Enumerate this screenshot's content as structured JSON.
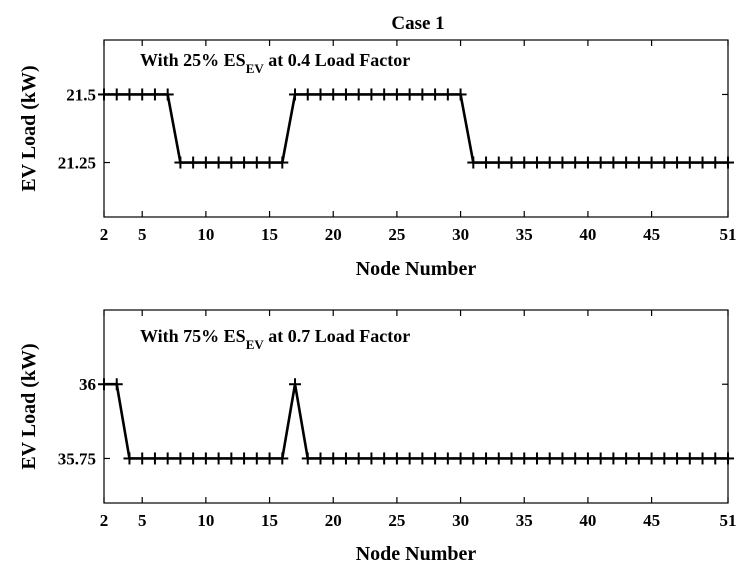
{
  "figure_title": "Case 1",
  "chart_data": [
    {
      "type": "line",
      "title": "Case 1",
      "annotation": {
        "prefix": "With 25% ES",
        "subscript": "EV",
        "suffix": " at 0.4 Load Factor"
      },
      "xlabel": "Node Number",
      "ylabel": "EV Load (kW)",
      "xlim": [
        2,
        51
      ],
      "ylim": [
        21.05,
        21.7
      ],
      "xticks": [
        2,
        5,
        10,
        15,
        20,
        25,
        30,
        35,
        40,
        45,
        51
      ],
      "yticks": [
        21.25,
        21.5
      ],
      "ytick_labels": [
        "21.25",
        "21.5"
      ],
      "marker": "+",
      "color": "#000000",
      "grid": false,
      "x": [
        2,
        3,
        4,
        5,
        6,
        7,
        8,
        9,
        10,
        11,
        12,
        13,
        14,
        15,
        16,
        17,
        18,
        19,
        20,
        21,
        22,
        23,
        24,
        25,
        26,
        27,
        28,
        29,
        30,
        31,
        32,
        33,
        34,
        35,
        36,
        37,
        38,
        39,
        40,
        41,
        42,
        43,
        44,
        45,
        46,
        47,
        48,
        49,
        50,
        51
      ],
      "values": [
        21.5,
        21.5,
        21.5,
        21.5,
        21.5,
        21.5,
        21.25,
        21.25,
        21.25,
        21.25,
        21.25,
        21.25,
        21.25,
        21.25,
        21.25,
        21.5,
        21.5,
        21.5,
        21.5,
        21.5,
        21.5,
        21.5,
        21.5,
        21.5,
        21.5,
        21.5,
        21.5,
        21.5,
        21.5,
        21.25,
        21.25,
        21.25,
        21.25,
        21.25,
        21.25,
        21.25,
        21.25,
        21.25,
        21.25,
        21.25,
        21.25,
        21.25,
        21.25,
        21.25,
        21.25,
        21.25,
        21.25,
        21.25,
        21.25,
        21.25
      ]
    },
    {
      "type": "line",
      "title": "",
      "annotation": {
        "prefix": "With 75% ES",
        "subscript": "EV",
        "suffix": " at 0.7 Load Factor"
      },
      "xlabel": "Node Number",
      "ylabel": "EV Load (kW)",
      "xlim": [
        2,
        51
      ],
      "ylim": [
        35.6,
        36.25
      ],
      "xticks": [
        2,
        5,
        10,
        15,
        20,
        25,
        30,
        35,
        40,
        45,
        51
      ],
      "yticks": [
        35.75,
        36
      ],
      "ytick_labels": [
        "35.75",
        "36"
      ],
      "marker": "+",
      "color": "#000000",
      "grid": false,
      "x": [
        2,
        3,
        4,
        5,
        6,
        7,
        8,
        9,
        10,
        11,
        12,
        13,
        14,
        15,
        16,
        17,
        18,
        19,
        20,
        21,
        22,
        23,
        24,
        25,
        26,
        27,
        28,
        29,
        30,
        31,
        32,
        33,
        34,
        35,
        36,
        37,
        38,
        39,
        40,
        41,
        42,
        43,
        44,
        45,
        46,
        47,
        48,
        49,
        50,
        51
      ],
      "values": [
        36,
        36,
        35.75,
        35.75,
        35.75,
        35.75,
        35.75,
        35.75,
        35.75,
        35.75,
        35.75,
        35.75,
        35.75,
        35.75,
        35.75,
        36,
        35.75,
        35.75,
        35.75,
        35.75,
        35.75,
        35.75,
        35.75,
        35.75,
        35.75,
        35.75,
        35.75,
        35.75,
        35.75,
        35.75,
        35.75,
        35.75,
        35.75,
        35.75,
        35.75,
        35.75,
        35.75,
        35.75,
        35.75,
        35.75,
        35.75,
        35.75,
        35.75,
        35.75,
        35.75,
        35.75,
        35.75,
        35.75,
        35.75,
        35.75
      ]
    }
  ]
}
